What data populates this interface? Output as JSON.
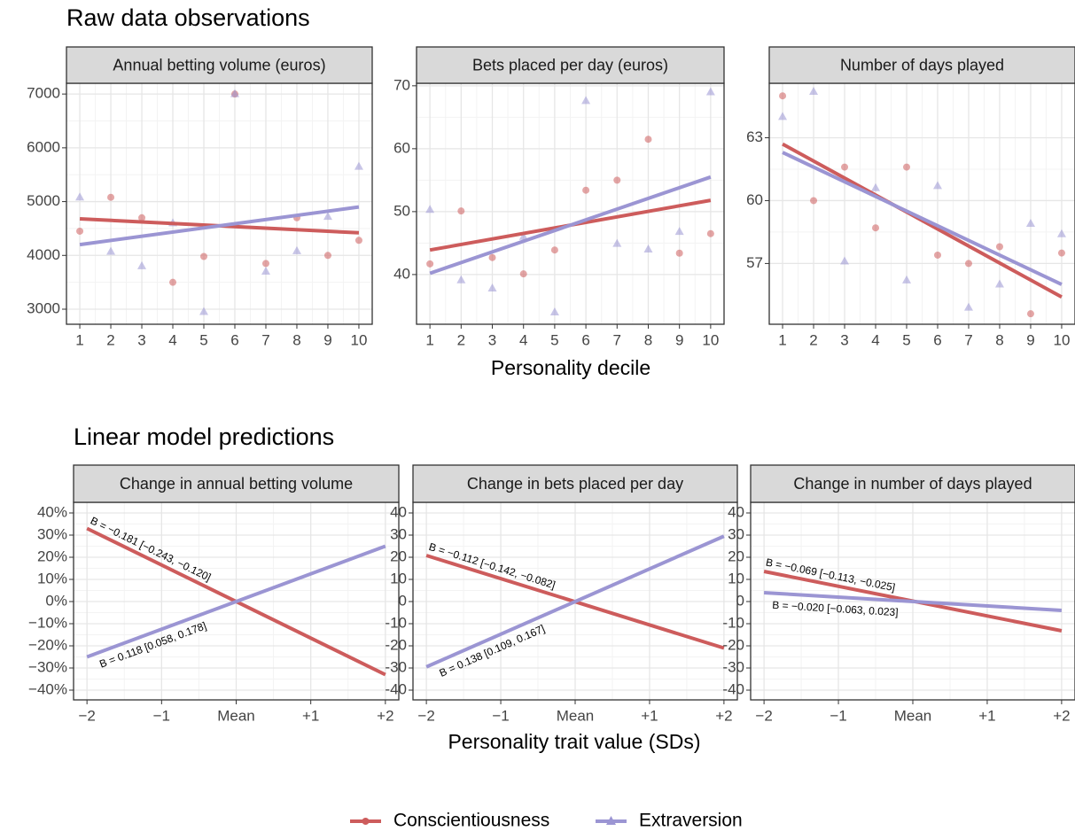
{
  "sections": [
    {
      "title": "Raw data observations",
      "x_label": "Personality decile"
    },
    {
      "title": "Linear model predictions",
      "x_label": "Personality trait value (SDs)"
    }
  ],
  "chart_data": [
    {
      "type": "scatter",
      "title": "Annual betting volume (euros)",
      "x": [
        1,
        2,
        3,
        4,
        5,
        6,
        7,
        8,
        9,
        10
      ],
      "xlim": [
        0.57,
        10.43
      ],
      "xticks": [
        1,
        2,
        3,
        4,
        5,
        6,
        7,
        8,
        9,
        10
      ],
      "ylim": [
        2720,
        7200
      ],
      "yticks": [
        3000,
        4000,
        5000,
        6000,
        7000
      ],
      "grid": true,
      "series": [
        {
          "name": "Conscientiousness",
          "color": "#cd5c5c",
          "marker": "circle",
          "values": [
            4450,
            5080,
            4700,
            3500,
            3980,
            7000,
            3850,
            4700,
            4000,
            4280
          ],
          "trend": [
            4680,
            4420
          ]
        },
        {
          "name": "Extraversion",
          "color": "#9b95d3",
          "marker": "triangle",
          "values": [
            5080,
            4070,
            3800,
            4600,
            2950,
            7000,
            3700,
            4080,
            4720,
            5650
          ],
          "trend": [
            4200,
            4900
          ]
        }
      ]
    },
    {
      "type": "scatter",
      "title": "Bets placed per day (euros)",
      "x": [
        1,
        2,
        3,
        4,
        5,
        6,
        7,
        8,
        9,
        10
      ],
      "xlim": [
        0.57,
        10.43
      ],
      "xticks": [
        1,
        2,
        3,
        4,
        5,
        6,
        7,
        8,
        9,
        10
      ],
      "ylim": [
        32.1,
        70.4
      ],
      "yticks": [
        40,
        50,
        60,
        70
      ],
      "grid": true,
      "series": [
        {
          "color": "#cd5c5c",
          "marker": "circle",
          "values": [
            41.7,
            50.1,
            42.7,
            40.1,
            43.9,
            53.4,
            55,
            61.5,
            43.4,
            46.5
          ],
          "trend": [
            43.9,
            51.8
          ]
        },
        {
          "color": "#9b95d3",
          "marker": "triangle",
          "values": [
            50.3,
            39.1,
            37.8,
            46,
            34,
            67.6,
            44.9,
            44,
            46.8,
            69
          ],
          "trend": [
            40.2,
            55.5
          ]
        }
      ]
    },
    {
      "type": "scatter",
      "title": "Number of days played",
      "x": [
        1,
        2,
        3,
        4,
        5,
        6,
        7,
        8,
        9,
        10
      ],
      "xlim": [
        0.57,
        10.43
      ],
      "xticks": [
        1,
        2,
        3,
        4,
        5,
        6,
        7,
        8,
        9,
        10
      ],
      "ylim": [
        54.1,
        65.6
      ],
      "yticks": [
        57,
        60,
        63
      ],
      "grid": true,
      "series": [
        {
          "color": "#cd5c5c",
          "marker": "circle",
          "values": [
            65.0,
            60.0,
            61.6,
            58.7,
            61.6,
            57.4,
            57.0,
            57.8,
            54.6,
            57.5
          ],
          "trend": [
            62.7,
            55.4
          ]
        },
        {
          "color": "#9b95d3",
          "marker": "triangle",
          "values": [
            64.0,
            65.2,
            57.1,
            60.6,
            56.2,
            60.7,
            54.9,
            56.0,
            58.9,
            58.4
          ],
          "trend": [
            62.3,
            56.0
          ]
        }
      ]
    },
    {
      "type": "line",
      "title": "Change in annual betting volume",
      "x": [
        -2,
        2
      ],
      "xlim": [
        -2.18,
        2.18
      ],
      "xticks": [
        {
          "value": -2,
          "label": "−2"
        },
        {
          "value": -1,
          "label": "−1"
        },
        {
          "value": 0,
          "label": "Mean"
        },
        {
          "value": 1,
          "label": "+1"
        },
        {
          "value": 2,
          "label": "+2"
        }
      ],
      "ylim": [
        -44.4,
        44.8
      ],
      "yticks": [
        {
          "value": -40,
          "label": "−40%"
        },
        {
          "value": -30,
          "label": "−30%"
        },
        {
          "value": -20,
          "label": "−20%"
        },
        {
          "value": -10,
          "label": "−10%"
        },
        {
          "value": 0,
          "label": "0%"
        },
        {
          "value": 10,
          "label": "10%"
        },
        {
          "value": 20,
          "label": "20%"
        },
        {
          "value": 30,
          "label": "30%"
        },
        {
          "value": 40,
          "label": "40%"
        }
      ],
      "grid": true,
      "series": [
        {
          "color": "#cd5c5c",
          "values": [
            33,
            -33
          ],
          "annotation": "B = −0.181 [−0.243, −0.120]"
        },
        {
          "color": "#9b95d3",
          "values": [
            -25,
            25
          ],
          "annotation": "B = 0.118 [0.058, 0.178]"
        }
      ]
    },
    {
      "type": "line",
      "title": "Change in bets placed per day",
      "x": [
        -2,
        2
      ],
      "xlim": [
        -2.18,
        2.18
      ],
      "xticks": [
        {
          "value": -2,
          "label": "−2"
        },
        {
          "value": -1,
          "label": "−1"
        },
        {
          "value": 0,
          "label": "Mean"
        },
        {
          "value": 1,
          "label": "+1"
        },
        {
          "value": 2,
          "label": "+2"
        }
      ],
      "ylim": [
        -44.4,
        44.8
      ],
      "yticks": [
        -40,
        -30,
        -20,
        -10,
        0,
        10,
        20,
        30,
        40
      ],
      "grid": true,
      "series": [
        {
          "color": "#cd5c5c",
          "values": [
            20.8,
            -21
          ],
          "annotation": "B = −0.112 [−0.142, −0.082]"
        },
        {
          "color": "#9b95d3",
          "values": [
            -29.5,
            29.5
          ],
          "annotation": "B = 0.138 [0.109, 0.167]"
        }
      ]
    },
    {
      "type": "line",
      "title": "Change in number of days played",
      "x": [
        -2,
        2
      ],
      "xlim": [
        -2.18,
        2.18
      ],
      "xticks": [
        {
          "value": -2,
          "label": "−2"
        },
        {
          "value": -1,
          "label": "−1"
        },
        {
          "value": 0,
          "label": "Mean"
        },
        {
          "value": 1,
          "label": "+1"
        },
        {
          "value": 2,
          "label": "+2"
        }
      ],
      "ylim": [
        -44.4,
        44.8
      ],
      "yticks": [
        -40,
        -30,
        -20,
        -10,
        0,
        10,
        20,
        30,
        40
      ],
      "grid": true,
      "series": [
        {
          "color": "#cd5c5c",
          "values": [
            13.6,
            -13.2
          ],
          "annotation": "B = −0.069 [−0.113, −0.025]"
        },
        {
          "color": "#9b95d3",
          "values": [
            4,
            -4
          ],
          "annotation": "B = −0.020 [−0.063, 0.023]"
        }
      ]
    }
  ]
}
